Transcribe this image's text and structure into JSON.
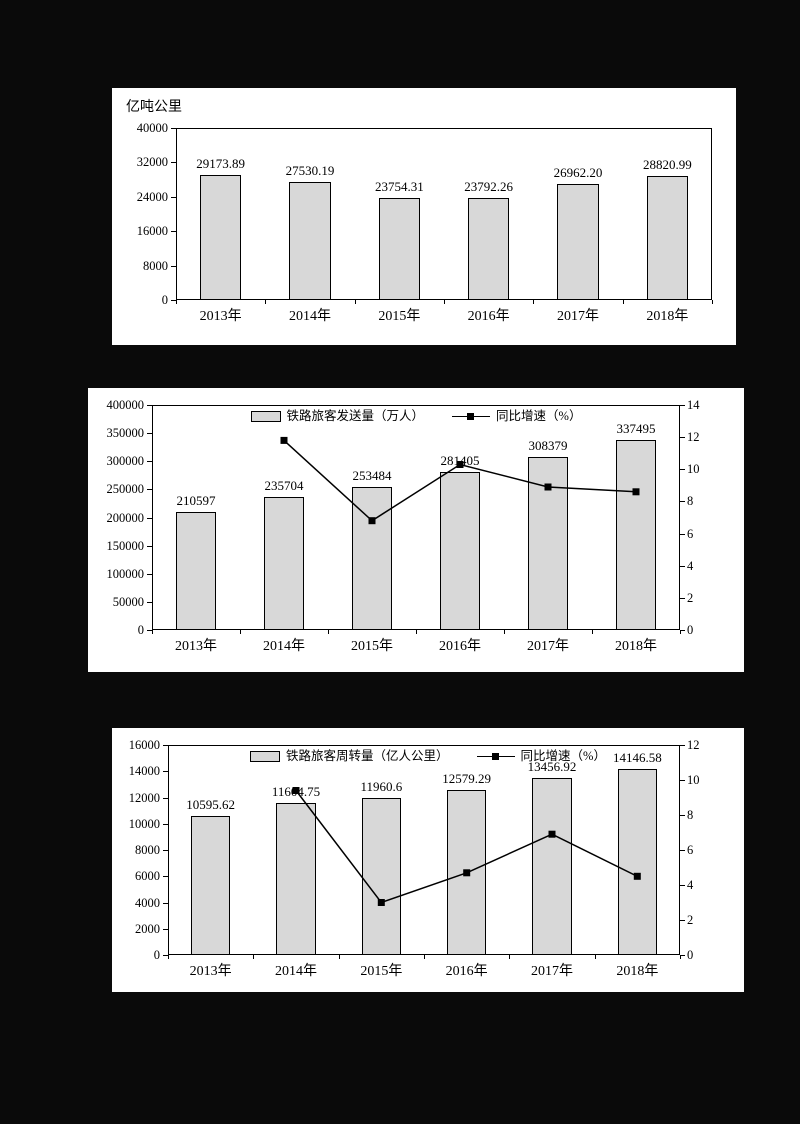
{
  "page": {
    "background": "#0a0a0a",
    "panel_background": "#ffffff"
  },
  "chart_data": [
    {
      "type": "bar",
      "unit_label": "亿吨公里",
      "categories": [
        "2013年",
        "2014年",
        "2015年",
        "2016年",
        "2017年",
        "2018年"
      ],
      "ylim": [
        0,
        40000
      ],
      "ytick_step": 8000,
      "bar_color": "#d8d8d8",
      "bar_border": "#000000",
      "grid": false,
      "legend": null,
      "series": [
        {
          "type": "bar",
          "axis": "left",
          "values": [
            29173.89,
            27530.19,
            23754.31,
            23792.26,
            26962.2,
            28820.99
          ],
          "labels": [
            "29173.89",
            "27530.19",
            "23754.31",
            "23792.26",
            "26962.20",
            "28820.99"
          ]
        }
      ]
    },
    {
      "type": "bar+line",
      "legend": [
        "铁路旅客发送量（万人）",
        "同比增速（%）"
      ],
      "categories": [
        "2013年",
        "2014年",
        "2015年",
        "2016年",
        "2017年",
        "2018年"
      ],
      "ylim": [
        0,
        400000
      ],
      "ytick_step": 50000,
      "y2lim": [
        0,
        14
      ],
      "y2tick_step": 2,
      "bar_color": "#d8d8d8",
      "bar_border": "#000000",
      "line_color": "#000000",
      "grid": false,
      "series": [
        {
          "name": "铁路旅客发送量（万人）",
          "type": "bar",
          "axis": "left",
          "values": [
            210597,
            235704,
            253484,
            281405,
            308379,
            337495
          ],
          "labels": [
            "210597",
            "235704",
            "253484",
            "281405",
            "308379",
            "337495"
          ]
        },
        {
          "name": "同比增速（%）",
          "type": "line",
          "axis": "right",
          "values": [
            null,
            11.8,
            6.8,
            10.3,
            8.9,
            8.6
          ]
        }
      ]
    },
    {
      "type": "bar+line",
      "legend": [
        "铁路旅客周转量（亿人公里）",
        "同比增速（%）"
      ],
      "categories": [
        "2013年",
        "2014年",
        "2015年",
        "2016年",
        "2017年",
        "2018年"
      ],
      "ylim": [
        0,
        16000
      ],
      "ytick_step": 2000,
      "y2lim": [
        0,
        12
      ],
      "y2tick_step": 2,
      "bar_color": "#d8d8d8",
      "bar_border": "#000000",
      "line_color": "#000000",
      "grid": false,
      "series": [
        {
          "name": "铁路旅客周转量（亿人公里）",
          "type": "bar",
          "axis": "left",
          "values": [
            10595.62,
            11604.75,
            11960.6,
            12579.29,
            13456.92,
            14146.58
          ],
          "labels": [
            "10595.62",
            "11604.75",
            "11960.6",
            "12579.29",
            "13456.92",
            "14146.58"
          ]
        },
        {
          "name": "同比增速（%）",
          "type": "line",
          "axis": "right",
          "values": [
            null,
            9.4,
            3.0,
            4.7,
            6.9,
            4.5
          ]
        }
      ]
    }
  ]
}
